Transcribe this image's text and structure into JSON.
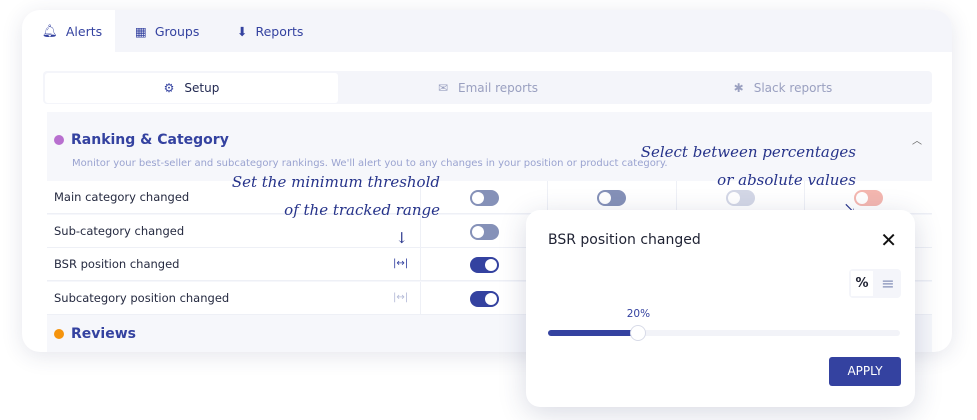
{
  "tabs": [
    {
      "label": "Alerts",
      "icon": "bell-icon"
    },
    {
      "label": "Groups",
      "icon": "grid-icon"
    },
    {
      "label": "Reports",
      "icon": "download-icon"
    }
  ],
  "subtabs": [
    {
      "label": "Setup",
      "icon": "gear-icon"
    },
    {
      "label": "Email reports",
      "icon": "mail-icon"
    },
    {
      "label": "Slack reports",
      "icon": "slack-icon"
    }
  ],
  "section": {
    "title": "Ranking & Category",
    "dot_color": "#b86fcf",
    "description": "Monitor your best-seller and subcategory rankings. We'll alert you to any changes in your position or product category.",
    "rows": [
      {
        "label": "Main category changed",
        "toggles": [
          "off",
          "off",
          "off-light",
          "off-red"
        ]
      },
      {
        "label": "Sub-category changed",
        "toggles": [
          "off"
        ]
      },
      {
        "label": "BSR position changed",
        "toggles": [
          "on"
        ],
        "range": true
      },
      {
        "label": "Subcategory position changed",
        "toggles": [
          "on"
        ],
        "range": true
      }
    ]
  },
  "section2": {
    "title": "Reviews",
    "dot_color": "#f5940d"
  },
  "annotations": {
    "threshold_1": "Set the minimum threshold",
    "threshold_2": "of the tracked range",
    "select_1": "Select between percentages",
    "select_2": "or absolute values"
  },
  "popup": {
    "title": "BSR position changed",
    "percent_label": "%",
    "slider_value": "20%",
    "slider_fraction": 0.2,
    "apply": "APPLY"
  },
  "colors": {
    "accent": "#3442a0",
    "toggle_on": "#3442a0",
    "toggle_off": "#8591b8"
  }
}
